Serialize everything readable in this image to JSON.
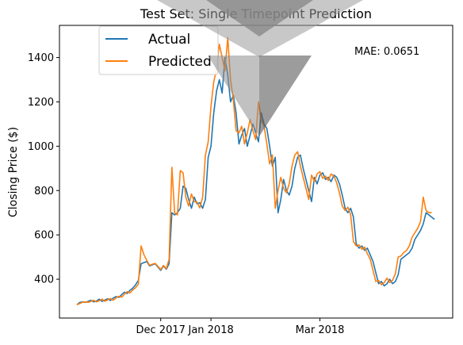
{
  "chart_data": {
    "type": "line",
    "title": "Test Set: Single Timepoint Prediction",
    "xlabel": "",
    "ylabel": "Closing Price ($)",
    "x_tick_labels": [
      "Dec 2017",
      "Jan 2018",
      "Mar 2018"
    ],
    "y_ticks": [
      400,
      600,
      800,
      1000,
      1200,
      1400
    ],
    "ylim": [
      225,
      1545
    ],
    "grid": false,
    "legend_position": "top-left",
    "annotation": "MAE: 0.0651",
    "series": [
      {
        "name": "Actual",
        "color": "#1f77b4",
        "values": [
          285,
          295,
          298,
          296,
          300,
          305,
          298,
          302,
          310,
          300,
          306,
          312,
          304,
          315,
          322,
          318,
          330,
          342,
          336,
          350,
          360,
          375,
          395,
          470,
          475,
          480,
          460,
          465,
          470,
          455,
          440,
          460,
          445,
          470,
          700,
          690,
          700,
          720,
          820,
          810,
          760,
          720,
          770,
          740,
          745,
          720,
          760,
          950,
          1000,
          1150,
          1250,
          1300,
          1240,
          1400,
          1320,
          1200,
          1230,
          1150,
          1010,
          1050,
          1080,
          1000,
          1050,
          1100,
          1060,
          1020,
          1150,
          1100,
          1080,
          1000,
          910,
          950,
          700,
          760,
          850,
          800,
          780,
          820,
          900,
          950,
          960,
          900,
          850,
          800,
          750,
          860,
          830,
          870,
          880,
          850,
          860,
          840,
          870,
          860,
          830,
          780,
          720,
          700,
          720,
          680,
          560,
          540,
          550,
          530,
          540,
          510,
          480,
          430,
          380,
          390,
          370,
          380,
          400,
          380,
          390,
          420,
          490,
          500,
          510,
          520,
          540,
          580,
          600,
          620,
          650,
          700,
          690,
          680,
          670
        ]
      },
      {
        "name": "Predicted",
        "color": "#ff7f0e",
        "values": [
          285,
          290,
          296,
          298,
          296,
          300,
          305,
          298,
          303,
          310,
          301,
          307,
          313,
          305,
          316,
          323,
          319,
          332,
          344,
          338,
          352,
          362,
          378,
          550,
          510,
          485,
          463,
          468,
          472,
          458,
          444,
          462,
          448,
          490,
          905,
          700,
          690,
          890,
          880,
          770,
          730,
          785,
          750,
          748,
          722,
          770,
          960,
          1020,
          1180,
          1290,
          1350,
          1460,
          1400,
          1340,
          1490,
          1300,
          1210,
          1070,
          1060,
          1090,
          1010,
          1060,
          1120,
          1070,
          1030,
          1200,
          1120,
          1090,
          1010,
          920,
          960,
          720,
          800,
          860,
          810,
          790,
          830,
          910,
          960,
          975,
          910,
          860,
          810,
          760,
          870,
          840,
          875,
          885,
          855,
          865,
          845,
          875,
          865,
          835,
          790,
          730,
          710,
          725,
          690,
          570,
          550,
          555,
          535,
          545,
          515,
          490,
          440,
          390,
          395,
          375,
          385,
          405,
          385,
          395,
          425,
          500,
          505,
          520,
          530,
          550,
          590,
          610,
          630,
          660,
          770,
          710,
          700,
          700
        ]
      }
    ]
  }
}
